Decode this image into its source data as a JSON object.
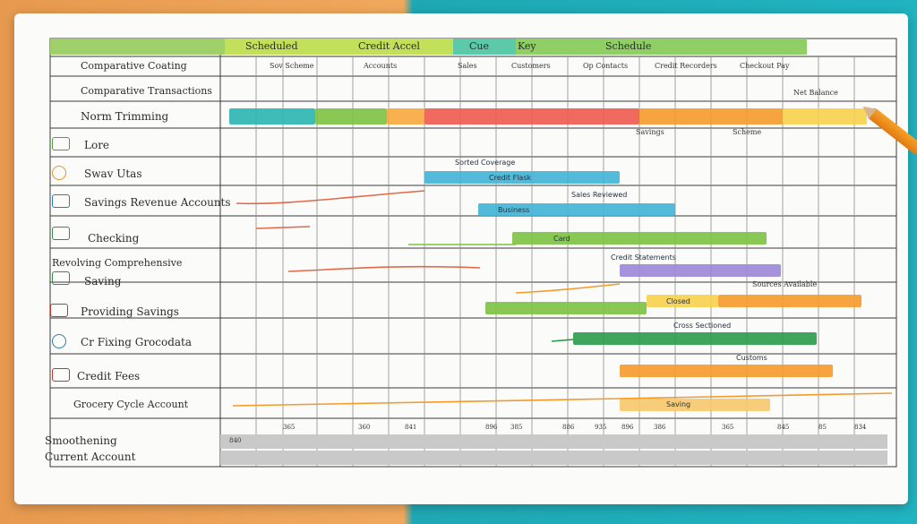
{
  "header": {
    "left_title": "Schedule",
    "segments": [
      "Scheduled",
      "Credit Accel",
      "Cue",
      "Key",
      "Schedule"
    ]
  },
  "top_rows": [
    {
      "label": "Comparative Coating"
    },
    {
      "label": "Comparative Transactions"
    },
    {
      "label": "Norm Trimming"
    }
  ],
  "row_labels": [
    "Lore",
    "Swav Utas",
    "Savings Revenue Accounts",
    "Checking",
    "Revolving Comprehensive",
    "Saving",
    "Providing Savings",
    "Cr Fixing Grocodata",
    "Credit Fees",
    "Grocery Cycle Account"
  ],
  "bottom_label": [
    "Smoothening",
    "Current Account"
  ],
  "header_notes": [
    "Sov Scheme",
    "Accounts",
    "Sales",
    "Customers",
    "Op Contacts",
    "Credit Recorders",
    "Checkout Pay"
  ],
  "bar_labels": [
    "Sorted Coverage",
    "Credit Flask",
    "Sales Reviewed",
    "Business",
    "Card",
    "Closed",
    "Credit Statements",
    "Cross Sectioned",
    "Customs",
    "Saving"
  ],
  "notes": [
    "Sources Available",
    "Scheme",
    "Net Balance",
    "Savings"
  ],
  "bottom_nums": [
    "840",
    "365",
    "360",
    "841",
    "896",
    "385",
    "886",
    "935",
    "896",
    "386",
    "365",
    "845",
    "85",
    "834"
  ],
  "colors": {
    "teal": "#2bb5b0",
    "green": "#7cc241",
    "lime": "#a8d24d",
    "orange": "#f59a2a",
    "red": "#ee5a4f",
    "blue": "#41b3d6",
    "purple": "#9b86d8",
    "yellow": "#f7d04a"
  }
}
